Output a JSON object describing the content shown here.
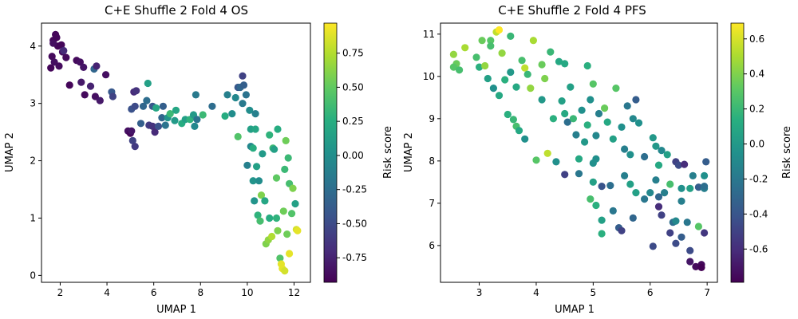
{
  "chart_data": [
    {
      "type": "scatter",
      "title": "C+E Shuffle 2 Fold 4 OS",
      "xlabel": "UMAP 1",
      "ylabel": "UMAP 2",
      "colorbar_label": "Risk score",
      "xlim": [
        1.2,
        12.7
      ],
      "ylim": [
        -0.12,
        4.4
      ],
      "xticks": [
        "2",
        "4",
        "6",
        "8",
        "10",
        "12"
      ],
      "yticks": [
        "0",
        "1",
        "2",
        "3",
        "4"
      ],
      "clim": [
        -0.93,
        0.97
      ],
      "cticks": [
        "0.75",
        "0.50",
        "0.25",
        "0.00",
        "-0.25",
        "-0.50",
        "-0.75"
      ],
      "points": [
        [
          1.6,
          3.62,
          -0.9
        ],
        [
          1.7,
          4.1,
          -0.9
        ],
        [
          1.8,
          4.2,
          -0.9
        ],
        [
          1.65,
          3.82,
          -0.88
        ],
        [
          1.9,
          4.0,
          -0.9
        ],
        [
          1.75,
          3.72,
          -0.85
        ],
        [
          2.05,
          4.02,
          -0.9
        ],
        [
          1.95,
          3.65,
          -0.87
        ],
        [
          2.1,
          3.9,
          -0.85
        ],
        [
          2.25,
          3.8,
          -0.88
        ],
        [
          1.85,
          4.15,
          -0.9
        ],
        [
          1.7,
          4.05,
          -0.85
        ],
        [
          2.15,
          3.92,
          -0.7
        ],
        [
          2.4,
          3.32,
          -0.9
        ],
        [
          2.7,
          3.75,
          -0.88
        ],
        [
          2.85,
          3.72,
          -0.85
        ],
        [
          3.0,
          3.63,
          -0.82
        ],
        [
          2.9,
          3.37,
          -0.8
        ],
        [
          3.05,
          3.15,
          -0.88
        ],
        [
          3.3,
          3.3,
          -0.75
        ],
        [
          3.45,
          3.6,
          -0.3
        ],
        [
          3.55,
          3.65,
          -0.75
        ],
        [
          3.5,
          3.12,
          -0.85
        ],
        [
          3.7,
          3.05,
          -0.8
        ],
        [
          3.95,
          3.5,
          -0.85
        ],
        [
          4.2,
          3.2,
          -0.4
        ],
        [
          4.25,
          3.12,
          -0.55
        ],
        [
          4.9,
          2.52,
          -0.85
        ],
        [
          5.0,
          2.48,
          -0.9
        ],
        [
          5.05,
          2.52,
          -0.82
        ],
        [
          5.1,
          2.35,
          -0.55
        ],
        [
          5.2,
          2.25,
          -0.6
        ],
        [
          5.05,
          2.9,
          -0.45
        ],
        [
          5.15,
          3.2,
          -0.7
        ],
        [
          5.25,
          3.22,
          -0.65
        ],
        [
          5.2,
          2.95,
          -0.5
        ],
        [
          5.45,
          2.65,
          -0.35
        ],
        [
          5.55,
          2.95,
          -0.3
        ],
        [
          5.7,
          3.05,
          -0.25
        ],
        [
          5.75,
          3.35,
          0.15
        ],
        [
          5.8,
          2.62,
          -0.6
        ],
        [
          5.95,
          2.6,
          -0.65
        ],
        [
          5.95,
          2.95,
          -0.4
        ],
        [
          6.05,
          2.5,
          -0.7
        ],
        [
          6.1,
          2.92,
          0.2
        ],
        [
          6.2,
          2.6,
          -0.45
        ],
        [
          6.35,
          2.75,
          -0.3
        ],
        [
          6.4,
          2.95,
          -0.35
        ],
        [
          6.5,
          2.62,
          -0.2
        ],
        [
          6.6,
          2.75,
          0.05
        ],
        [
          6.7,
          2.82,
          0.35
        ],
        [
          6.95,
          2.88,
          0.2
        ],
        [
          6.9,
          2.7,
          0.1
        ],
        [
          7.2,
          2.65,
          0.25
        ],
        [
          7.35,
          2.72,
          0.15
        ],
        [
          7.55,
          2.72,
          0.3
        ],
        [
          7.7,
          2.8,
          0.1
        ],
        [
          7.75,
          2.6,
          -0.05
        ],
        [
          7.8,
          3.15,
          -0.15
        ],
        [
          7.85,
          2.72,
          -0.2
        ],
        [
          8.1,
          2.8,
          0.35
        ],
        [
          8.5,
          2.95,
          -0.25
        ],
        [
          9.05,
          2.78,
          0.25
        ],
        [
          9.15,
          3.15,
          -0.1
        ],
        [
          9.35,
          2.82,
          0.0
        ],
        [
          9.5,
          3.1,
          -0.05
        ],
        [
          9.6,
          3.28,
          -0.4
        ],
        [
          9.7,
          3.28,
          -0.3
        ],
        [
          9.8,
          3.48,
          -0.55
        ],
        [
          9.85,
          3.32,
          -0.35
        ],
        [
          9.6,
          2.42,
          0.45
        ],
        [
          9.8,
          3.0,
          -0.15
        ],
        [
          9.95,
          3.15,
          -0.2
        ],
        [
          10.0,
          1.92,
          -0.1
        ],
        [
          10.1,
          2.88,
          0.0
        ],
        [
          10.15,
          2.55,
          0.15
        ],
        [
          10.15,
          2.25,
          -0.05
        ],
        [
          10.25,
          2.22,
          0.25
        ],
        [
          10.35,
          2.82,
          -0.1
        ],
        [
          10.25,
          1.65,
          0.05
        ],
        [
          10.35,
          2.55,
          0.2
        ],
        [
          10.3,
          1.3,
          0.05
        ],
        [
          10.4,
          1.9,
          0.15
        ],
        [
          10.45,
          1.05,
          0.3
        ],
        [
          10.5,
          1.65,
          0.0
        ],
        [
          10.55,
          0.95,
          0.4
        ],
        [
          10.6,
          1.4,
          0.6
        ],
        [
          10.65,
          2.12,
          0.1
        ],
        [
          10.75,
          1.3,
          0.2
        ],
        [
          10.8,
          0.55,
          0.6
        ],
        [
          10.9,
          0.62,
          0.65
        ],
        [
          10.95,
          2.45,
          0.3
        ],
        [
          10.95,
          1.0,
          0.25
        ],
        [
          11.05,
          0.68,
          0.75
        ],
        [
          11.1,
          2.22,
          0.35
        ],
        [
          11.15,
          2.2,
          0.15
        ],
        [
          11.25,
          1.7,
          0.5
        ],
        [
          11.25,
          1.0,
          0.3
        ],
        [
          11.3,
          0.78,
          0.6
        ],
        [
          11.3,
          2.55,
          0.25
        ],
        [
          11.4,
          0.3,
          0.45
        ],
        [
          11.45,
          0.2,
          0.9
        ],
        [
          11.5,
          0.12,
          0.9
        ],
        [
          11.55,
          1.12,
          0.55
        ],
        [
          11.6,
          1.85,
          0.35
        ],
        [
          11.6,
          0.08,
          0.85
        ],
        [
          11.65,
          2.35,
          0.55
        ],
        [
          11.7,
          0.72,
          0.55
        ],
        [
          11.75,
          2.05,
          0.35
        ],
        [
          11.8,
          0.38,
          0.9
        ],
        [
          11.8,
          1.6,
          0.4
        ],
        [
          11.9,
          1.08,
          0.45
        ],
        [
          11.95,
          1.52,
          0.6
        ],
        [
          12.05,
          1.25,
          0.15
        ],
        [
          12.1,
          0.8,
          0.85
        ],
        [
          12.15,
          0.78,
          0.9
        ]
      ]
    },
    {
      "type": "scatter",
      "title": "C+E Shuffle 2 Fold 4 PFS",
      "xlabel": "UMAP 1",
      "ylabel": "UMAP 2",
      "colorbar_label": "Risk score",
      "xlim": [
        2.32,
        7.18
      ],
      "ylim": [
        5.13,
        11.26
      ],
      "xticks": [
        "3",
        "4",
        "5",
        "6",
        "7"
      ],
      "yticks": [
        "6",
        "7",
        "8",
        "9",
        "10",
        "11"
      ],
      "clim": [
        -0.79,
        0.69
      ],
      "cticks": [
        "0.6",
        "0.4",
        "0.2",
        "0.0",
        "-0.2",
        "-0.4",
        "-0.6"
      ],
      "points": [
        [
          2.55,
          10.52,
          0.45
        ],
        [
          2.6,
          10.3,
          0.35
        ],
        [
          2.55,
          10.22,
          0.3
        ],
        [
          2.65,
          10.15,
          0.25
        ],
        [
          2.75,
          10.68,
          0.5
        ],
        [
          2.95,
          10.45,
          0.25
        ],
        [
          3.0,
          10.22,
          0.15
        ],
        [
          3.05,
          10.85,
          0.35
        ],
        [
          3.1,
          10.25,
          0.45
        ],
        [
          3.15,
          9.95,
          0.05
        ],
        [
          3.2,
          10.85,
          0.3
        ],
        [
          3.2,
          10.72,
          0.25
        ],
        [
          3.25,
          9.72,
          -0.05
        ],
        [
          3.3,
          11.05,
          0.55
        ],
        [
          3.35,
          11.1,
          0.69
        ],
        [
          3.35,
          9.55,
          0.1
        ],
        [
          3.4,
          10.55,
          0.45
        ],
        [
          3.45,
          9.92,
          0.15
        ],
        [
          3.5,
          9.1,
          0.15
        ],
        [
          3.55,
          10.1,
          0.0
        ],
        [
          3.55,
          10.95,
          0.2
        ],
        [
          3.6,
          8.98,
          0.2
        ],
        [
          3.65,
          8.82,
          0.25
        ],
        [
          3.65,
          9.75,
          0.1
        ],
        [
          3.7,
          8.72,
          0.1
        ],
        [
          3.75,
          10.38,
          0.25
        ],
        [
          3.8,
          10.2,
          0.55
        ],
        [
          3.8,
          8.52,
          -0.05
        ],
        [
          3.85,
          10.05,
          0.2
        ],
        [
          3.9,
          9.72,
          0.45
        ],
        [
          3.95,
          10.85,
          0.5
        ],
        [
          4.0,
          8.02,
          0.3
        ],
        [
          4.1,
          10.28,
          0.35
        ],
        [
          4.1,
          9.45,
          0.0
        ],
        [
          4.15,
          9.95,
          0.4
        ],
        [
          4.2,
          8.18,
          0.55
        ],
        [
          4.25,
          10.58,
          0.2
        ],
        [
          4.3,
          9.0,
          0.15
        ],
        [
          4.35,
          7.98,
          -0.05
        ],
        [
          4.4,
          10.35,
          0.1
        ],
        [
          4.45,
          9.42,
          0.05
        ],
        [
          4.5,
          10.3,
          0.1
        ],
        [
          4.5,
          9.12,
          0.1
        ],
        [
          4.55,
          8.92,
          -0.25
        ],
        [
          4.5,
          7.68,
          -0.5
        ],
        [
          4.6,
          9.75,
          0.05
        ],
        [
          4.65,
          9.0,
          0.2
        ],
        [
          4.7,
          8.62,
          -0.15
        ],
        [
          4.75,
          8.05,
          0.1
        ],
        [
          4.75,
          7.7,
          -0.2
        ],
        [
          4.8,
          9.2,
          -0.05
        ],
        [
          4.85,
          8.45,
          0.0
        ],
        [
          4.9,
          10.25,
          0.15
        ],
        [
          4.9,
          8.85,
          0.15
        ],
        [
          4.95,
          7.1,
          0.25
        ],
        [
          4.95,
          9.45,
          -0.05
        ],
        [
          5.0,
          7.95,
          -0.05
        ],
        [
          5.0,
          7.5,
          0.05
        ],
        [
          5.05,
          8.6,
          -0.1
        ],
        [
          5.05,
          6.95,
          0.15
        ],
        [
          5.0,
          9.82,
          0.3
        ],
        [
          5.05,
          8.05,
          -0.05
        ],
        [
          5.1,
          9.12,
          -0.15
        ],
        [
          5.15,
          7.4,
          -0.4
        ],
        [
          5.15,
          6.6,
          0.05
        ],
        [
          5.15,
          6.28,
          0.15
        ],
        [
          5.2,
          9.25,
          0.35
        ],
        [
          5.25,
          8.92,
          0.1
        ],
        [
          5.3,
          7.42,
          -0.25
        ],
        [
          5.35,
          6.82,
          -0.2
        ],
        [
          5.35,
          8.52,
          0.05
        ],
        [
          5.4,
          9.72,
          0.3
        ],
        [
          5.45,
          6.42,
          -0.35
        ],
        [
          5.5,
          8.8,
          -0.05
        ],
        [
          5.5,
          6.35,
          -0.5
        ],
        [
          5.55,
          7.65,
          -0.15
        ],
        [
          5.55,
          8.28,
          -0.15
        ],
        [
          5.6,
          9.3,
          -0.2
        ],
        [
          5.65,
          8.15,
          -0.05
        ],
        [
          5.65,
          7.45,
          0.05
        ],
        [
          5.7,
          9.0,
          -0.1
        ],
        [
          5.7,
          6.65,
          -0.3
        ],
        [
          5.75,
          9.45,
          -0.35
        ],
        [
          5.75,
          7.25,
          0.05
        ],
        [
          5.8,
          8.9,
          -0.05
        ],
        [
          5.9,
          8.1,
          -0.25
        ],
        [
          5.9,
          7.1,
          -0.2
        ],
        [
          6.0,
          7.25,
          -0.1
        ],
        [
          6.05,
          8.55,
          0.0
        ],
        [
          6.05,
          5.98,
          -0.45
        ],
        [
          6.1,
          8.35,
          0.0
        ],
        [
          6.1,
          7.55,
          -0.15
        ],
        [
          6.15,
          7.9,
          0.1
        ],
        [
          6.15,
          7.15,
          -0.3
        ],
        [
          6.15,
          6.92,
          -0.6
        ],
        [
          6.2,
          8.25,
          -0.1
        ],
        [
          6.2,
          6.72,
          -0.5
        ],
        [
          6.25,
          7.25,
          -0.15
        ],
        [
          6.3,
          8.15,
          0.05
        ],
        [
          6.35,
          6.3,
          -0.5
        ],
        [
          6.35,
          7.45,
          0.25
        ],
        [
          6.4,
          6.55,
          -0.25
        ],
        [
          6.45,
          7.98,
          -0.5
        ],
        [
          6.45,
          6.05,
          -0.45
        ],
        [
          6.45,
          6.58,
          -0.1
        ],
        [
          6.5,
          7.9,
          -0.45
        ],
        [
          6.55,
          7.05,
          -0.15
        ],
        [
          6.55,
          6.2,
          -0.35
        ],
        [
          6.55,
          7.35,
          -0.05
        ],
        [
          6.6,
          7.92,
          -0.6
        ],
        [
          6.65,
          6.55,
          -0.2
        ],
        [
          6.7,
          5.88,
          -0.45
        ],
        [
          6.7,
          7.35,
          0.05
        ],
        [
          6.7,
          5.62,
          -0.7
        ],
        [
          6.75,
          7.65,
          -0.15
        ],
        [
          6.8,
          5.5,
          -0.75
        ],
        [
          6.85,
          7.38,
          -0.35
        ],
        [
          6.85,
          6.45,
          0.3
        ],
        [
          6.9,
          5.55,
          -0.75
        ],
        [
          6.9,
          5.48,
          -0.79
        ],
        [
          6.95,
          7.65,
          -0.05
        ],
        [
          6.95,
          7.35,
          -0.15
        ],
        [
          6.95,
          6.3,
          -0.55
        ],
        [
          6.98,
          7.98,
          -0.35
        ],
        [
          6.95,
          7.4,
          -0.25
        ]
      ]
    }
  ]
}
